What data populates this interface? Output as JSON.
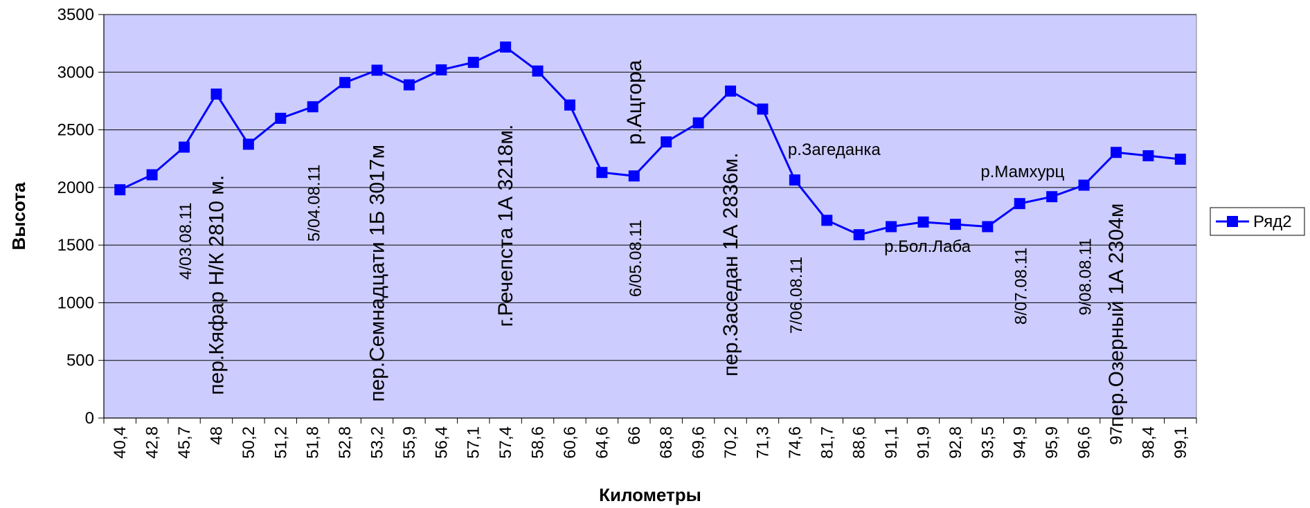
{
  "chart_data": {
    "type": "line",
    "title": "",
    "xlabel": "Километры",
    "ylabel": "Высота",
    "ylim": [
      0,
      3500
    ],
    "yticks": [
      0,
      500,
      1000,
      1500,
      2000,
      2500,
      3000,
      3500
    ],
    "grid": true,
    "legend_position": "right",
    "colors": {
      "plot_bg": "#ccccff",
      "series": "#0000ff",
      "grid": "#000000"
    },
    "categories": [
      "40,4",
      "42,8",
      "45,7",
      "48",
      "50,2",
      "51,2",
      "51,8",
      "52,8",
      "53,2",
      "55,9",
      "56,4",
      "57,1",
      "57,4",
      "58,6",
      "60,6",
      "64,6",
      "66",
      "68,8",
      "69,6",
      "70,2",
      "71,3",
      "74,6",
      "81,7",
      "88,6",
      "91,1",
      "91,9",
      "92,8",
      "93,5",
      "94,9",
      "95,9",
      "96,6",
      "97",
      "98,4",
      "99,1"
    ],
    "series": [
      {
        "name": "Ряд2",
        "values": [
          1980,
          2110,
          2350,
          2810,
          2375,
          2600,
          2700,
          2910,
          3017,
          2890,
          3020,
          3085,
          3218,
          3010,
          2715,
          2130,
          2100,
          2395,
          2560,
          2836,
          2680,
          2065,
          1715,
          1590,
          1660,
          1700,
          1680,
          1660,
          1860,
          1920,
          2020,
          2304,
          2275,
          2245
        ]
      }
    ],
    "annotations": [
      {
        "text": "4/03.08.11",
        "category_index": 2,
        "y": 1200,
        "rotated": true,
        "size": "small"
      },
      {
        "text": "пер.Кяфар Н/К 2810 м.",
        "category_index": 3,
        "y": 200,
        "rotated": true,
        "size": "big"
      },
      {
        "text": "5/04.08.11",
        "category_index": 6,
        "y": 1530,
        "rotated": true,
        "size": "small"
      },
      {
        "text": "пер.Семнадцати 1Б 3017м",
        "category_index": 8,
        "y": 140,
        "rotated": true,
        "size": "big"
      },
      {
        "text": "г.Речепста 1А 3218м.",
        "category_index": 12,
        "y": 790,
        "rotated": true,
        "size": "big"
      },
      {
        "text": "р.Ацгора",
        "category_index": 16,
        "y": 2370,
        "rotated": true,
        "size": "big"
      },
      {
        "text": "6/05.08.11",
        "category_index": 16,
        "y": 1050,
        "rotated": true,
        "size": "small"
      },
      {
        "text": "пер.Заседан 1А 2836м.",
        "category_index": 19,
        "y": 360,
        "rotated": true,
        "size": "big"
      },
      {
        "text": "р.Загеданка",
        "category_index": 21,
        "y": 2280,
        "rotated": false,
        "size": "small"
      },
      {
        "text": "7/06.08.11",
        "category_index": 21,
        "y": 730,
        "rotated": true,
        "size": "small"
      },
      {
        "text": "р.Бол.Лаба",
        "category_index": 24,
        "y": 1440,
        "rotated": false,
        "size": "small"
      },
      {
        "text": "р.Мамхурц",
        "category_index": 27,
        "y": 2090,
        "rotated": false,
        "size": "small"
      },
      {
        "text": "8/07.08.11",
        "category_index": 28,
        "y": 810,
        "rotated": true,
        "size": "small"
      },
      {
        "text": "9/08.08.11",
        "category_index": 30,
        "y": 890,
        "rotated": true,
        "size": "small"
      },
      {
        "text": "пер.Озерный 1А 2304м",
        "category_index": 31,
        "y": -80,
        "rotated": true,
        "size": "big"
      }
    ]
  }
}
